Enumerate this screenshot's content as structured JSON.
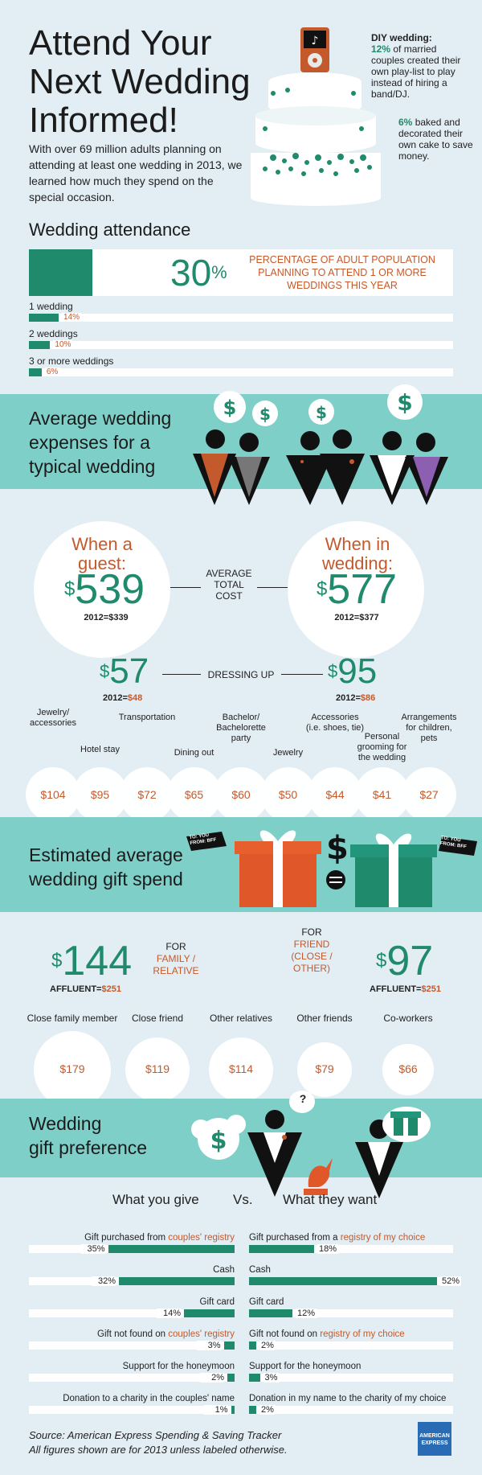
{
  "header": {
    "title_lines": [
      "Attend Your",
      "Next Wedding",
      "Informed!"
    ],
    "intro": "With over 69 million adults planning on attending at least one wedding in 2013, we learned how much they spend on the special occasion.",
    "note1_lead": "DIY wedding:",
    "note1_pct": "12%",
    "note1_rest": "of married couples created their own play-list to play instead of hiring a band/DJ.",
    "note2_pct": "6%",
    "note2_rest": "baked and decorated their own cake to save money."
  },
  "attendance": {
    "heading": "Wedding attendance",
    "big_pct_num": "30",
    "big_pct_sign": "%",
    "big_text": "PERCENTAGE OF ADULT POPULATION PLANNING TO ATTEND 1 OR MORE WEDDINGS THIS YEAR",
    "rows": [
      {
        "label": "1 wedding",
        "value": 14,
        "pct": "14%"
      },
      {
        "label": "2 weddings",
        "value": 10,
        "pct": "10%"
      },
      {
        "label": "3 or more weddings",
        "value": 6,
        "pct": "6%"
      }
    ]
  },
  "expenses": {
    "heading_lines": [
      "Average wedding",
      "expenses for a",
      "typical wedding"
    ],
    "guest_title": "When a guest:",
    "guest_amount": "539",
    "guest_2012": "2012=$339",
    "wedding_title": "When in wedding:",
    "wedding_amount": "577",
    "wedding_2012": "2012=$377",
    "avg_label": "AVERAGE TOTAL COST",
    "dress_guest": "57",
    "dress_guest_2012_lead": "2012=",
    "dress_guest_2012": "$48",
    "dress_label": "DRESSING UP",
    "dress_wedding": "95",
    "dress_wedding_2012_lead": "2012=",
    "dress_wedding_2012": "$86",
    "currency": "$",
    "categories": [
      {
        "label": "Jewelry/ accessories",
        "value": "$104"
      },
      {
        "label": "Hotel stay",
        "value": "$95"
      },
      {
        "label": "Transportation",
        "value": "$72"
      },
      {
        "label": "Dining out",
        "value": "$65"
      },
      {
        "label": "Bachelor/ Bachelorette party",
        "value": "$60"
      },
      {
        "label": "Jewelry",
        "value": "$50"
      },
      {
        "label": "Accessories (i.e. shoes, tie)",
        "value": "$44"
      },
      {
        "label": "Personal grooming for the wedding",
        "value": "$41"
      },
      {
        "label": "Arrangements for children, pets",
        "value": "$27"
      }
    ]
  },
  "gift": {
    "heading_lines": [
      "Estimated average",
      "wedding gift spend"
    ],
    "tag_left": "TO: YOU FROM: BFF",
    "tag_right": "TO: YOU FROM: BFF",
    "family_amount": "144",
    "family_for": "FOR",
    "family_label": "FAMILY / RELATIVE",
    "family_affluent_lead": "AFFLUENT=",
    "family_affluent": "$251",
    "friend_for": "FOR",
    "friend_label": "FRIEND (CLOSE / OTHER)",
    "friend_amount": "97",
    "friend_affluent_lead": "AFFLUENT=",
    "friend_affluent": "$251",
    "currency": "$",
    "recipients": [
      {
        "label": "Close family member",
        "value": "$179"
      },
      {
        "label": "Close friend",
        "value": "$119"
      },
      {
        "label": "Other relatives",
        "value": "$114"
      },
      {
        "label": "Other friends",
        "value": "$79"
      },
      {
        "label": "Co-workers",
        "value": "$66"
      }
    ]
  },
  "preference": {
    "heading_lines": [
      "Wedding",
      "gift preference"
    ],
    "left_heading": "What you give",
    "vs": "Vs.",
    "right_heading": "What they want",
    "question": "?",
    "rows": [
      {
        "give_label_pre": "Gift purchased from ",
        "give_label_hl": "couples' registry",
        "give": 35,
        "give_pct": "35%",
        "want_label_pre": "Gift purchased from a ",
        "want_label_hl": "registry of my choice",
        "want": 18,
        "want_pct": "18%"
      },
      {
        "give_label_pre": "Cash",
        "give_label_hl": "",
        "give": 32,
        "give_pct": "32%",
        "want_label_pre": "Cash",
        "want_label_hl": "",
        "want": 52,
        "want_pct": "52%"
      },
      {
        "give_label_pre": "Gift card",
        "give_label_hl": "",
        "give": 14,
        "give_pct": "14%",
        "want_label_pre": "Gift card",
        "want_label_hl": "",
        "want": 12,
        "want_pct": "12%"
      },
      {
        "give_label_pre": "Gift not found on ",
        "give_label_hl": "couples' registry",
        "give": 3,
        "give_pct": "3%",
        "want_label_pre": "Gift not found on ",
        "want_label_hl": "registry of my choice",
        "want": 2,
        "want_pct": "2%"
      },
      {
        "give_label_pre": "Support for the honeymoon",
        "give_label_hl": "",
        "give": 2,
        "give_pct": "2%",
        "want_label_pre": "Support for the honeymoon",
        "want_label_hl": "",
        "want": 3,
        "want_pct": "3%"
      },
      {
        "give_label_pre": "Donation to a charity in the couples' name",
        "give_label_hl": "",
        "give": 1,
        "give_pct": "1%",
        "want_label_pre": "Donation in my name to the charity of my choice",
        "want_label_hl": "",
        "want": 2,
        "want_pct": "2%"
      }
    ]
  },
  "footer": {
    "source": "Source: American Express Spending & Saving Tracker",
    "note": "All figures shown are for 2013 unless labeled otherwise.",
    "logo_text": "AMERICAN EXPRESS"
  },
  "chart_data": [
    {
      "type": "bar",
      "title": "Wedding attendance",
      "categories": [
        "1 wedding",
        "2 weddings",
        "3 or more weddings"
      ],
      "values": [
        14,
        10,
        6
      ],
      "highlight": {
        "value": 30
      }
    },
    {
      "type": "table",
      "title": "Average wedding expenses for a typical wedding",
      "categories": [
        "Jewelry/ accessories",
        "Hotel stay",
        "Transportation",
        "Dining out",
        "Bachelor/ Bachelorette party",
        "Jewelry",
        "Accessories (i.e. shoes, tie)",
        "Personal grooming for the wedding",
        "Arrangements for children, pets"
      ],
      "values": [
        104,
        95,
        72,
        65,
        60,
        50,
        44,
        41,
        27
      ]
    },
    {
      "type": "table",
      "title": "Estimated average wedding gift spend",
      "categories": [
        "Close family member",
        "Close friend",
        "Other relatives",
        "Other friends",
        "Co-workers"
      ],
      "values": [
        179,
        119,
        114,
        79,
        66
      ]
    },
    {
      "type": "bar",
      "title": "Wedding gift preference",
      "categories": [
        "Gift purchased from registry",
        "Cash",
        "Gift card",
        "Gift not found on registry",
        "Support for the honeymoon",
        "Donation to a charity"
      ],
      "series": [
        {
          "name": "What you give",
          "values": [
            35,
            32,
            14,
            3,
            2,
            1
          ]
        },
        {
          "name": "What they want",
          "values": [
            18,
            52,
            12,
            2,
            3,
            2
          ]
        }
      ]
    }
  ]
}
